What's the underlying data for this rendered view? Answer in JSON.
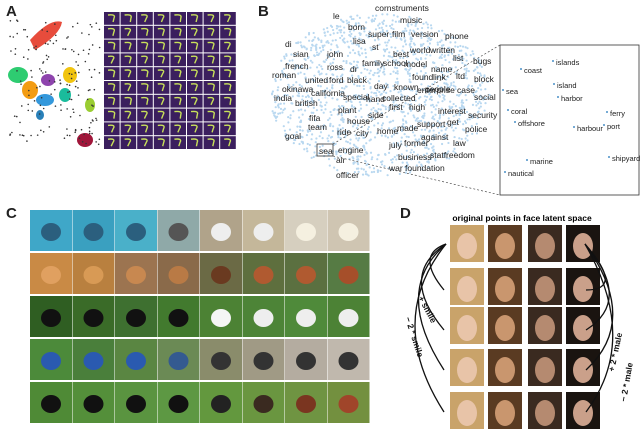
{
  "panel_a": {
    "label": "A"
  },
  "panel_b": {
    "label": "B",
    "words": [
      "cornstruments",
      "le",
      "music",
      "born",
      "super",
      "film",
      "version",
      "phone",
      "lisa",
      "st",
      "di",
      "sian",
      "john",
      "best",
      "world",
      "written",
      "list",
      "bugs",
      "french",
      "ross",
      "dr",
      "family",
      "school",
      "model",
      "name",
      "roman",
      "united",
      "ford",
      "black",
      "found",
      "link",
      "ltd",
      "block",
      "okinawa",
      "california",
      "day",
      "known",
      "enterprise",
      "case",
      "india",
      "british",
      "special",
      "hand",
      "collected",
      "people",
      "social",
      "plant",
      "side",
      "first",
      "high",
      "interest",
      "fifa",
      "house",
      "made",
      "support",
      "get",
      "security",
      "team",
      "ride",
      "city",
      "home",
      "former",
      "against",
      "law",
      "police",
      "goal",
      "sea",
      "engine",
      "july",
      "air",
      "business",
      "statfreedom",
      "war",
      "foundation",
      "officer"
    ],
    "inset_words": [
      "islands",
      "coast",
      "island",
      "sea",
      "harbor",
      "coral",
      "offshore",
      "ferry",
      "harbour",
      "port",
      "marine",
      "shipyard",
      "nautical"
    ]
  },
  "panel_c": {
    "label": "C"
  },
  "panel_d": {
    "label": "D",
    "title": "original points in face latent space",
    "arrows": [
      "+ smile",
      "− 2 * smile",
      "+ 2 * male",
      "− 2 * male"
    ]
  }
}
